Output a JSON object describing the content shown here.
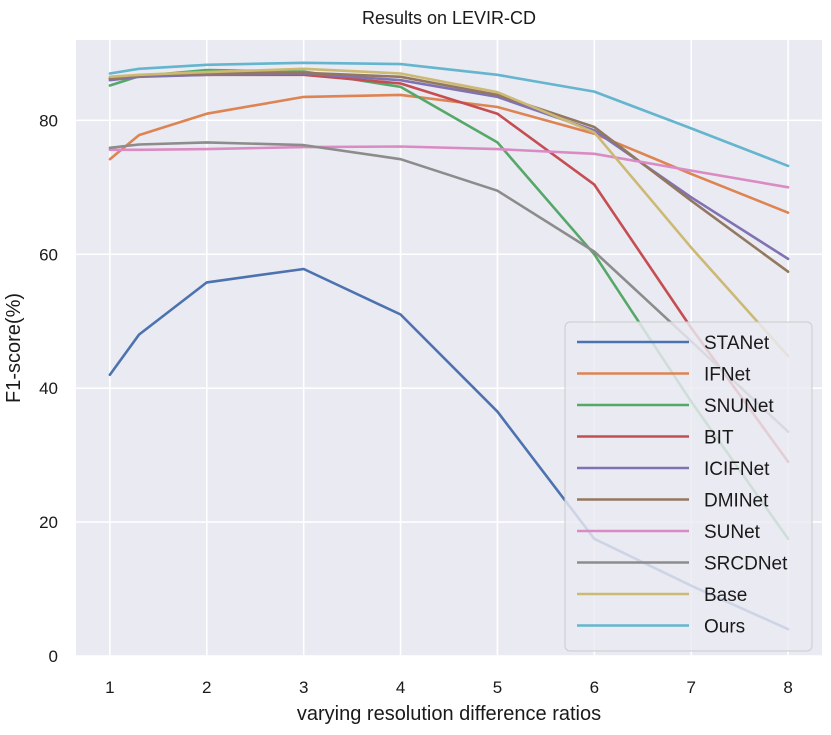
{
  "chart_data": {
    "type": "line",
    "title": "Results on LEVIR-CD",
    "xlabel": "varying resolution difference ratios",
    "ylabel": "F1-score(%)",
    "xlim": [
      0.65,
      8.35
    ],
    "ylim": [
      0,
      92
    ],
    "xticks": [
      1,
      2,
      3,
      4,
      5,
      6,
      7,
      8
    ],
    "yticks": [
      0,
      20,
      40,
      60,
      80
    ],
    "grid": true,
    "legend_position": "lower-right",
    "x": [
      1,
      1.3,
      2,
      3,
      4,
      5,
      6,
      7,
      8
    ],
    "series": [
      {
        "name": "STANet",
        "color": "#4c72b0",
        "values": [
          42.0,
          48.0,
          55.8,
          57.8,
          51.0,
          36.5,
          17.5,
          10.5,
          4.0
        ]
      },
      {
        "name": "IFNet",
        "color": "#dd8452",
        "values": [
          74.2,
          77.8,
          81.0,
          83.5,
          83.8,
          82.0,
          78.0,
          72.0,
          66.2
        ]
      },
      {
        "name": "SNUNet",
        "color": "#55a868",
        "values": [
          85.2,
          86.6,
          87.5,
          87.3,
          85.0,
          76.7,
          60.0,
          38.0,
          17.5
        ]
      },
      {
        "name": "BIT",
        "color": "#c44e52",
        "values": [
          86.3,
          86.6,
          86.8,
          86.8,
          85.5,
          81.0,
          70.4,
          49.0,
          29.0
        ]
      },
      {
        "name": "ICIFNet",
        "color": "#8172b3",
        "values": [
          86.0,
          86.5,
          86.8,
          87.0,
          86.0,
          83.5,
          78.5,
          68.5,
          59.3
        ]
      },
      {
        "name": "DMINet",
        "color": "#937860",
        "values": [
          86.2,
          86.7,
          87.0,
          87.1,
          86.5,
          83.8,
          79.0,
          68.0,
          57.4
        ]
      },
      {
        "name": "SUNet",
        "color": "#da8bc3",
        "values": [
          75.6,
          75.6,
          75.7,
          76.0,
          76.1,
          75.7,
          75.0,
          72.5,
          70.0
        ]
      },
      {
        "name": "SRCDNet",
        "color": "#8c8c8c",
        "values": [
          75.9,
          76.4,
          76.7,
          76.3,
          74.2,
          69.5,
          60.4,
          47.0,
          33.5
        ]
      },
      {
        "name": "Base",
        "color": "#ccb974",
        "values": [
          86.5,
          86.8,
          87.2,
          87.7,
          87.0,
          84.2,
          78.2,
          61.0,
          44.8
        ]
      },
      {
        "name": "Ours",
        "color": "#64b5cd",
        "values": [
          87.0,
          87.7,
          88.3,
          88.6,
          88.4,
          86.8,
          84.3,
          78.8,
          73.2
        ]
      }
    ]
  }
}
